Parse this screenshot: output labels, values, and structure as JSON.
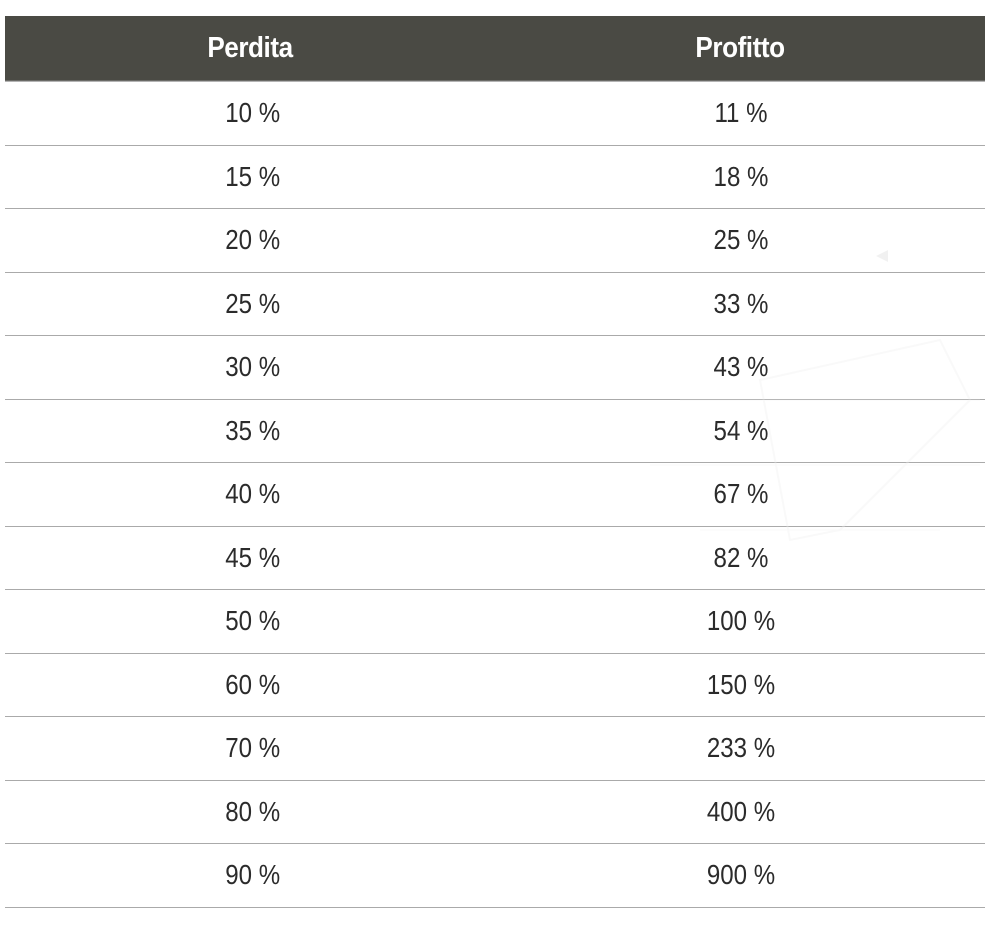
{
  "table": {
    "headers": [
      "Perdita",
      "Profitto"
    ],
    "rows": [
      [
        "10 %",
        "11 %"
      ],
      [
        "15 %",
        "18 %"
      ],
      [
        "20 %",
        "25 %"
      ],
      [
        "25 %",
        "33 %"
      ],
      [
        "30 %",
        "43 %"
      ],
      [
        "35 %",
        "54 %"
      ],
      [
        "40 %",
        "67 %"
      ],
      [
        "45 %",
        "82 %"
      ],
      [
        "50 %",
        "100 %"
      ],
      [
        "60 %",
        "150 %"
      ],
      [
        "70 %",
        "233 %"
      ],
      [
        "80 %",
        "400 %"
      ],
      [
        "90 %",
        "900 %"
      ]
    ]
  },
  "colors": {
    "header_background": "#4a4a44",
    "header_text": "#ffffff",
    "cell_text": "#2b2b2b",
    "row_divider": "#aaaaaa"
  }
}
